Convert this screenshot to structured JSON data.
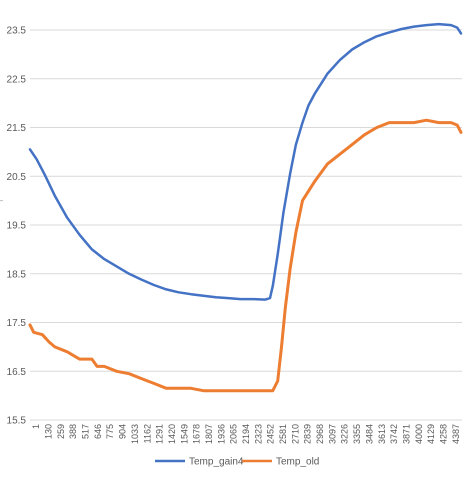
{
  "chart_data": {
    "type": "line",
    "title": "",
    "xlabel": "",
    "ylabel": "",
    "ylim": [
      15.5,
      23.5
    ],
    "yticks": [
      "15.5",
      "16.5",
      "17.5",
      "18.5",
      "19.5",
      "20.5",
      "21.5",
      "22.5",
      "23.5"
    ],
    "x_tick_labels": [
      "1",
      "130",
      "259",
      "388",
      "517",
      "646",
      "775",
      "904",
      "1033",
      "1162",
      "1291",
      "1420",
      "1549",
      "1678",
      "1807",
      "1936",
      "2065",
      "2194",
      "2323",
      "2452",
      "2581",
      "2710",
      "2839",
      "2968",
      "3097",
      "3226",
      "3355",
      "3484",
      "3613",
      "3742",
      "3871",
      "4000",
      "4129",
      "4258",
      "4387"
    ],
    "x_range": [
      1,
      4500
    ],
    "grid": "horizontal",
    "legend_position": "bottom",
    "series": [
      {
        "name": "Temp_gain4",
        "color": "#4472c4",
        "x": [
          1,
          70,
          150,
          259,
          388,
          517,
          646,
          775,
          904,
          1033,
          1162,
          1291,
          1420,
          1549,
          1678,
          1807,
          1936,
          2065,
          2194,
          2323,
          2452,
          2500,
          2530,
          2581,
          2640,
          2710,
          2770,
          2839,
          2900,
          2968,
          3097,
          3226,
          3355,
          3484,
          3613,
          3742,
          3871,
          4000,
          4129,
          4258,
          4387,
          4450,
          4490
        ],
        "values": [
          21.05,
          20.85,
          20.55,
          20.1,
          19.65,
          19.3,
          19.0,
          18.8,
          18.65,
          18.5,
          18.38,
          18.27,
          18.18,
          18.12,
          18.08,
          18.05,
          18.02,
          18.0,
          17.98,
          17.98,
          17.97,
          18.0,
          18.25,
          18.9,
          19.75,
          20.55,
          21.15,
          21.6,
          21.95,
          22.2,
          22.6,
          22.88,
          23.1,
          23.25,
          23.37,
          23.45,
          23.52,
          23.57,
          23.6,
          23.62,
          23.6,
          23.55,
          23.43
        ]
      },
      {
        "name": "Temp_old",
        "color": "#ed7d31",
        "x": [
          1,
          40,
          130,
          200,
          259,
          388,
          517,
          646,
          700,
          775,
          904,
          1033,
          1162,
          1291,
          1420,
          1549,
          1678,
          1807,
          1936,
          2065,
          2194,
          2323,
          2452,
          2530,
          2581,
          2620,
          2660,
          2710,
          2770,
          2839,
          2968,
          3097,
          3226,
          3355,
          3484,
          3613,
          3742,
          3871,
          4000,
          4129,
          4258,
          4387,
          4450,
          4490
        ],
        "values": [
          17.45,
          17.3,
          17.25,
          17.1,
          17.0,
          16.9,
          16.75,
          16.75,
          16.6,
          16.6,
          16.5,
          16.45,
          16.35,
          16.25,
          16.15,
          16.15,
          16.15,
          16.1,
          16.1,
          16.1,
          16.1,
          16.1,
          16.1,
          16.1,
          16.3,
          17.0,
          17.8,
          18.6,
          19.35,
          20.0,
          20.4,
          20.75,
          20.95,
          21.15,
          21.35,
          21.5,
          21.6,
          21.6,
          21.6,
          21.65,
          21.6,
          21.6,
          21.55,
          21.4
        ]
      }
    ]
  }
}
